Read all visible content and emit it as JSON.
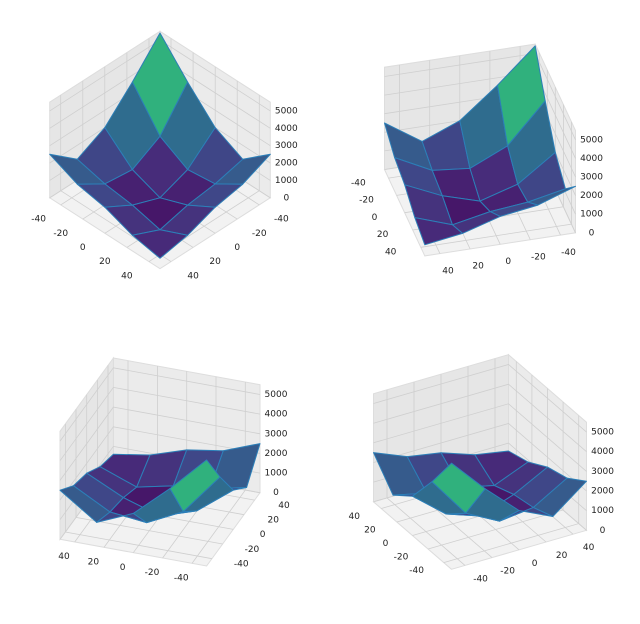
{
  "chart_data": [
    {
      "type": "surface",
      "elev": 40,
      "azim": 45,
      "colormap": "viridis",
      "edgecolor": "#2c7fb8",
      "x": [
        -50,
        -25,
        0,
        25,
        50
      ],
      "y": [
        -50,
        -25,
        0,
        25,
        50
      ],
      "z": [
        [
          5400,
          3600,
          2000,
          1200,
          2500
        ],
        [
          3600,
          1500,
          600,
          800,
          1800
        ],
        [
          2000,
          600,
          0,
          600,
          1500
        ],
        [
          1200,
          800,
          600,
          200,
          900
        ],
        [
          2500,
          1800,
          1500,
          900,
          600
        ]
      ],
      "xlim": [
        -50,
        50
      ],
      "ylim": [
        -50,
        50
      ],
      "zlim": [
        0,
        5500
      ],
      "xticks": [
        -40,
        -20,
        0,
        20,
        40
      ],
      "yticks": [
        -40,
        -20,
        0,
        20,
        40
      ],
      "zticks": [
        0,
        1000,
        2000,
        3000,
        4000,
        5000
      ]
    },
    {
      "type": "surface",
      "elev": 35,
      "azim": 75,
      "colormap": "viridis",
      "edgecolor": "#2c7fb8",
      "x": [
        -50,
        -25,
        0,
        25,
        50
      ],
      "y": [
        -50,
        -25,
        0,
        25,
        50
      ],
      "z": [
        [
          5400,
          3600,
          2000,
          1200,
          2500
        ],
        [
          3600,
          1500,
          600,
          800,
          1800
        ],
        [
          2000,
          600,
          0,
          600,
          1500
        ],
        [
          1200,
          800,
          600,
          200,
          900
        ],
        [
          2500,
          1800,
          1500,
          900,
          600
        ]
      ],
      "xlim": [
        -50,
        50
      ],
      "ylim": [
        -50,
        50
      ],
      "zlim": [
        0,
        5500
      ],
      "xticks": [
        -40,
        -20,
        0,
        20,
        40
      ],
      "yticks": [
        -40,
        -20,
        0,
        20,
        40
      ],
      "zticks": [
        0,
        1000,
        2000,
        3000,
        4000,
        5000
      ]
    },
    {
      "type": "surface",
      "elev": 30,
      "azim": 200,
      "colormap": "viridis",
      "edgecolor": "#2c7fb8",
      "x": [
        -50,
        -25,
        0,
        25,
        50
      ],
      "y": [
        -50,
        -25,
        0,
        25,
        50
      ],
      "z": [
        [
          5400,
          3600,
          2000,
          1200,
          2500
        ],
        [
          3600,
          1500,
          600,
          800,
          1800
        ],
        [
          2000,
          600,
          0,
          600,
          1500
        ],
        [
          1200,
          800,
          600,
          200,
          900
        ],
        [
          2500,
          1800,
          1500,
          900,
          600
        ]
      ],
      "xlim": [
        -50,
        50
      ],
      "ylim": [
        -50,
        50
      ],
      "zlim": [
        0,
        5500
      ],
      "xticks": [
        -40,
        -20,
        0,
        20,
        40
      ],
      "yticks": [
        -40,
        -20,
        0,
        20,
        40
      ],
      "zticks": [
        0,
        1000,
        2000,
        3000,
        4000,
        5000
      ]
    },
    {
      "type": "surface",
      "elev": 30,
      "azim": 240,
      "colormap": "viridis",
      "edgecolor": "#2c7fb8",
      "x": [
        -50,
        -25,
        0,
        25,
        50
      ],
      "y": [
        -50,
        -25,
        0,
        25,
        50
      ],
      "z": [
        [
          5400,
          3600,
          2000,
          1200,
          2500
        ],
        [
          3600,
          1500,
          600,
          800,
          1800
        ],
        [
          2000,
          600,
          0,
          600,
          1500
        ],
        [
          1200,
          800,
          600,
          200,
          900
        ],
        [
          2500,
          1800,
          1500,
          900,
          600
        ]
      ],
      "xlim": [
        -50,
        50
      ],
      "ylim": [
        -50,
        50
      ],
      "zlim": [
        0,
        5500
      ],
      "xticks": [
        -40,
        -20,
        0,
        20,
        40
      ],
      "yticks": [
        -40,
        -20,
        0,
        20,
        40
      ],
      "zticks": [
        0,
        1000,
        2000,
        3000,
        4000,
        5000
      ]
    }
  ]
}
